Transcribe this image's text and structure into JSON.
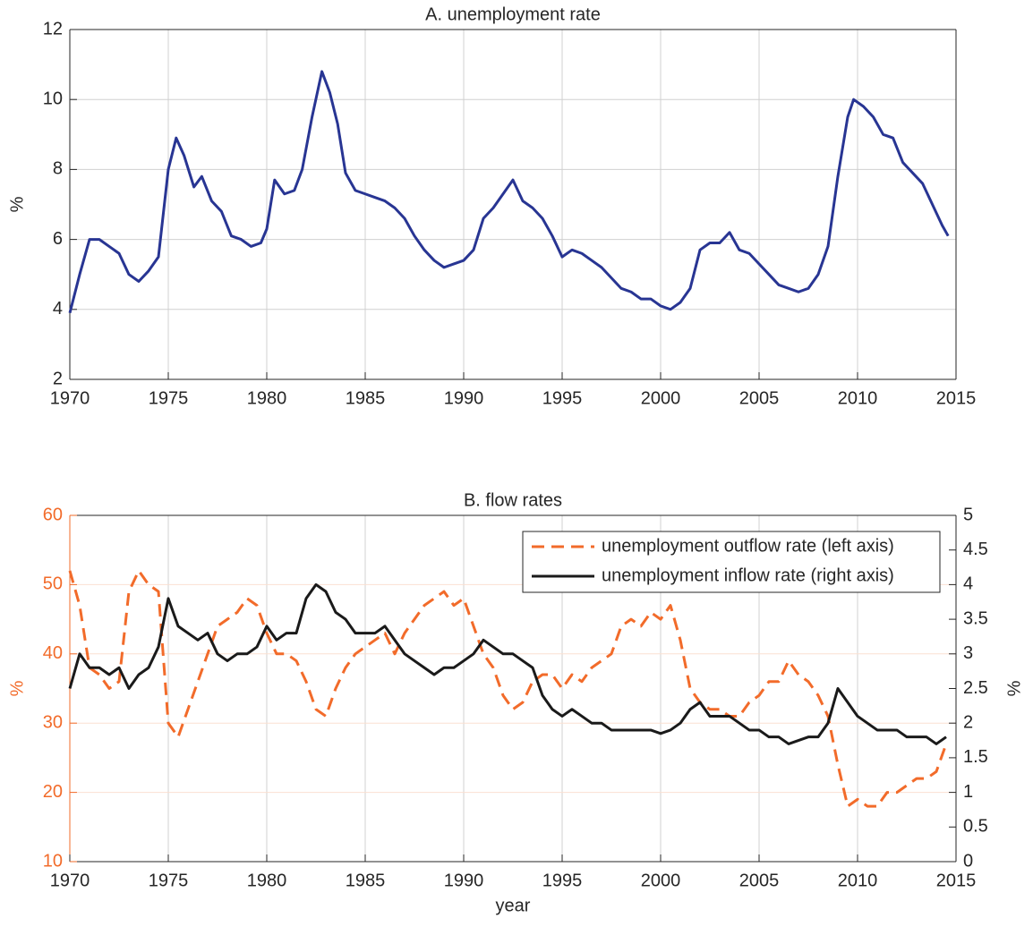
{
  "chart_data": [
    {
      "type": "line",
      "title": "A. unemployment rate",
      "ylabel": "%",
      "x": [
        1970.0,
        1970.5,
        1971.0,
        1971.5,
        1972.0,
        1972.5,
        1973.0,
        1973.5,
        1974.0,
        1974.5,
        1975.0,
        1975.4,
        1975.8,
        1976.3,
        1976.7,
        1977.2,
        1977.7,
        1978.2,
        1978.7,
        1979.2,
        1979.7,
        1980.0,
        1980.4,
        1980.9,
        1981.4,
        1981.8,
        1982.3,
        1982.8,
        1983.2,
        1983.6,
        1984.0,
        1984.5,
        1985.0,
        1985.5,
        1986.0,
        1986.5,
        1987.0,
        1987.5,
        1988.0,
        1988.5,
        1989.0,
        1989.5,
        1990.0,
        1990.5,
        1991.0,
        1991.5,
        1992.0,
        1992.5,
        1993.0,
        1993.5,
        1994.0,
        1994.5,
        1995.0,
        1995.5,
        1996.0,
        1996.5,
        1997.0,
        1997.5,
        1998.0,
        1998.5,
        1999.0,
        1999.5,
        2000.0,
        2000.5,
        2001.0,
        2001.5,
        2002.0,
        2002.5,
        2003.0,
        2003.5,
        2004.0,
        2004.5,
        2005.0,
        2005.5,
        2006.0,
        2006.5,
        2007.0,
        2007.5,
        2008.0,
        2008.5,
        2009.0,
        2009.5,
        2009.8,
        2010.3,
        2010.8,
        2011.3,
        2011.8,
        2012.3,
        2012.8,
        2013.3,
        2013.8,
        2014.3,
        2014.6
      ],
      "series": [
        {
          "name": "unemployment rate",
          "color": "#283593",
          "linestyle": "solid",
          "values": [
            3.9,
            5.0,
            6.0,
            6.0,
            5.8,
            5.6,
            5.0,
            4.8,
            5.1,
            5.5,
            8.0,
            8.9,
            8.4,
            7.5,
            7.8,
            7.1,
            6.8,
            6.1,
            6.0,
            5.8,
            5.9,
            6.3,
            7.7,
            7.3,
            7.4,
            8.0,
            9.5,
            10.8,
            10.2,
            9.3,
            7.9,
            7.4,
            7.3,
            7.2,
            7.1,
            6.9,
            6.6,
            6.1,
            5.7,
            5.4,
            5.2,
            5.3,
            5.4,
            5.7,
            6.6,
            6.9,
            7.3,
            7.7,
            7.1,
            6.9,
            6.6,
            6.1,
            5.5,
            5.7,
            5.6,
            5.4,
            5.2,
            4.9,
            4.6,
            4.5,
            4.3,
            4.3,
            4.1,
            4.0,
            4.2,
            4.6,
            5.7,
            5.9,
            5.9,
            6.2,
            5.7,
            5.6,
            5.3,
            5.0,
            4.7,
            4.6,
            4.5,
            4.6,
            5.0,
            5.8,
            7.8,
            9.5,
            10.0,
            9.8,
            9.5,
            9.0,
            8.9,
            8.2,
            7.9,
            7.6,
            7.0,
            6.4,
            6.1
          ]
        }
      ],
      "xlim": [
        1970,
        2015
      ],
      "xticks": [
        1970,
        1975,
        1980,
        1985,
        1990,
        1995,
        2000,
        2005,
        2010,
        2015
      ],
      "ylim": [
        2,
        12
      ],
      "yticks": [
        2,
        4,
        6,
        8,
        10,
        12
      ],
      "grid": true
    },
    {
      "type": "line",
      "title": "B. flow rates",
      "ylabel": "%",
      "y2label": "%",
      "xlabel": "year",
      "x": [
        1970.0,
        1970.5,
        1971.0,
        1971.5,
        1972.0,
        1972.5,
        1973.0,
        1973.5,
        1974.0,
        1974.5,
        1975.0,
        1975.5,
        1976.0,
        1976.5,
        1977.0,
        1977.5,
        1978.0,
        1978.5,
        1979.0,
        1979.5,
        1980.0,
        1980.5,
        1981.0,
        1981.5,
        1982.0,
        1982.5,
        1983.0,
        1983.5,
        1984.0,
        1984.5,
        1985.0,
        1985.5,
        1986.0,
        1986.5,
        1987.0,
        1987.5,
        1988.0,
        1988.5,
        1989.0,
        1989.5,
        1990.0,
        1990.5,
        1991.0,
        1991.5,
        1992.0,
        1992.5,
        1993.0,
        1993.5,
        1994.0,
        1994.5,
        1995.0,
        1995.5,
        1996.0,
        1996.5,
        1997.0,
        1997.5,
        1998.0,
        1998.5,
        1999.0,
        1999.5,
        2000.0,
        2000.5,
        2001.0,
        2001.5,
        2002.0,
        2002.5,
        2003.0,
        2003.5,
        2004.0,
        2004.5,
        2005.0,
        2005.5,
        2006.0,
        2006.5,
        2007.0,
        2007.5,
        2008.0,
        2008.5,
        2009.0,
        2009.5,
        2010.0,
        2010.5,
        2011.0,
        2011.5,
        2012.0,
        2012.5,
        2013.0,
        2013.5,
        2014.0,
        2014.5
      ],
      "series": [
        {
          "name": "unemployment outflow rate (left axis)",
          "color": "#f26b2a",
          "linestyle": "dashed",
          "values": [
            52,
            47,
            38,
            37,
            35,
            36,
            49,
            52,
            50,
            49,
            30,
            28,
            32,
            36,
            40,
            44,
            45,
            46,
            48,
            47,
            43,
            40,
            40,
            39,
            36,
            32,
            31,
            35,
            38,
            40,
            41,
            42,
            43,
            40,
            43,
            45,
            47,
            48,
            49,
            47,
            48,
            44,
            40,
            38,
            34,
            32,
            33,
            36,
            37,
            37,
            35,
            37,
            36,
            38,
            39,
            40,
            44,
            45,
            44,
            46,
            45,
            47,
            42,
            35,
            33,
            32,
            32,
            31,
            31,
            33,
            34,
            36,
            36,
            39,
            37,
            36,
            34,
            31,
            24,
            18,
            19,
            18,
            18,
            20,
            20,
            21,
            22,
            22,
            23,
            27
          ]
        },
        {
          "name": "unemployment inflow rate (right axis)",
          "color": "#1a1a1a",
          "linestyle": "solid",
          "axis": "y2",
          "values": [
            2.5,
            3.0,
            2.8,
            2.8,
            2.7,
            2.8,
            2.5,
            2.7,
            2.8,
            3.1,
            3.8,
            3.4,
            3.3,
            3.2,
            3.3,
            3.0,
            2.9,
            3.0,
            3.0,
            3.1,
            3.4,
            3.2,
            3.3,
            3.3,
            3.8,
            4.0,
            3.9,
            3.6,
            3.5,
            3.3,
            3.3,
            3.3,
            3.4,
            3.2,
            3.0,
            2.9,
            2.8,
            2.7,
            2.8,
            2.8,
            2.9,
            3.0,
            3.2,
            3.1,
            3.0,
            3.0,
            2.9,
            2.8,
            2.4,
            2.2,
            2.1,
            2.2,
            2.1,
            2.0,
            2.0,
            1.9,
            1.9,
            1.9,
            1.9,
            1.9,
            1.85,
            1.9,
            2.0,
            2.2,
            2.3,
            2.1,
            2.1,
            2.1,
            2.0,
            1.9,
            1.9,
            1.8,
            1.8,
            1.7,
            1.75,
            1.8,
            1.8,
            2.0,
            2.5,
            2.3,
            2.1,
            2.0,
            1.9,
            1.9,
            1.9,
            1.8,
            1.8,
            1.8,
            1.7,
            1.8
          ]
        }
      ],
      "xlim": [
        1970,
        2015
      ],
      "xticks": [
        1970,
        1975,
        1980,
        1985,
        1990,
        1995,
        2000,
        2005,
        2010,
        2015
      ],
      "ylim": [
        10,
        60
      ],
      "yticks": [
        10,
        20,
        30,
        40,
        50,
        60
      ],
      "ycolor": "#f26b2a",
      "y2lim": [
        0,
        5
      ],
      "y2ticks": [
        0,
        0.5,
        1,
        1.5,
        2,
        2.5,
        3,
        3.5,
        4,
        4.5,
        5
      ],
      "grid": true,
      "legend": "upper right"
    }
  ]
}
